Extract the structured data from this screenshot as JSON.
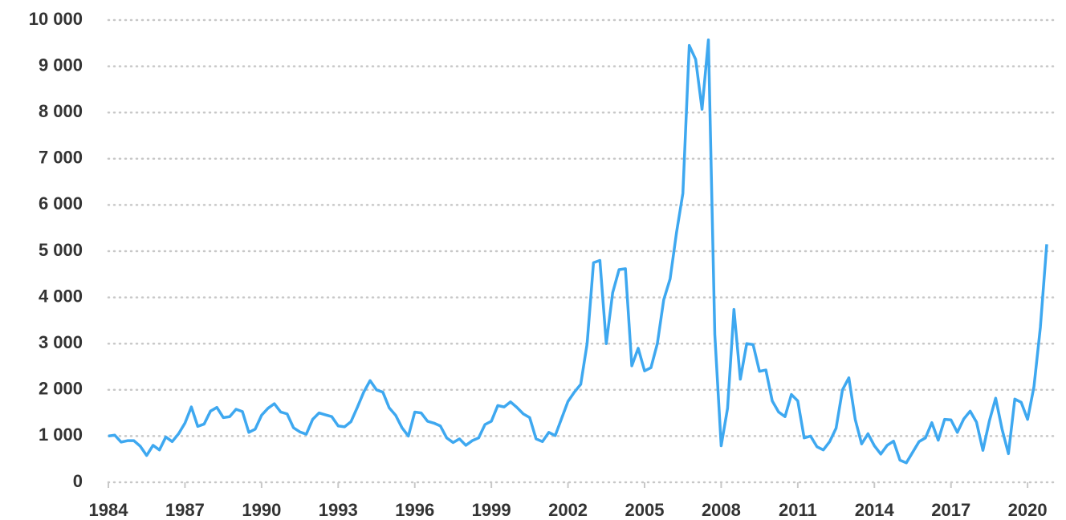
{
  "chart_data": {
    "type": "line",
    "x": [
      1984,
      1984.25,
      1984.5,
      1984.75,
      1985,
      1985.25,
      1985.5,
      1985.75,
      1986,
      1986.25,
      1986.5,
      1986.75,
      1987,
      1987.25,
      1987.5,
      1987.75,
      1988,
      1988.25,
      1988.5,
      1988.75,
      1989,
      1989.25,
      1989.5,
      1989.75,
      1990,
      1990.25,
      1990.5,
      1990.75,
      1991,
      1991.25,
      1991.5,
      1991.75,
      1992,
      1992.25,
      1992.5,
      1992.75,
      1993,
      1993.25,
      1993.5,
      1993.75,
      1994,
      1994.25,
      1994.5,
      1994.75,
      1995,
      1995.25,
      1995.5,
      1995.75,
      1996,
      1996.25,
      1996.5,
      1996.75,
      1997,
      1997.25,
      1997.5,
      1997.75,
      1998,
      1998.25,
      1998.5,
      1998.75,
      1999,
      1999.25,
      1999.5,
      1999.75,
      2000,
      2000.25,
      2000.5,
      2000.75,
      2001,
      2001.25,
      2001.5,
      2001.75,
      2002,
      2002.25,
      2002.5,
      2002.75,
      2003,
      2003.25,
      2003.5,
      2003.75,
      2004,
      2004.25,
      2004.5,
      2004.75,
      2005,
      2005.25,
      2005.5,
      2005.75,
      2006,
      2006.25,
      2006.5,
      2006.75,
      2007,
      2007.25,
      2007.5,
      2007.75,
      2008,
      2008.25,
      2008.5,
      2008.75,
      2009,
      2009.25,
      2009.5,
      2009.75,
      2010,
      2010.25,
      2010.5,
      2010.75,
      2011,
      2011.25,
      2011.5,
      2011.75,
      2012,
      2012.25,
      2012.5,
      2012.75,
      2013,
      2013.25,
      2013.5,
      2013.75,
      2014,
      2014.25,
      2014.5,
      2014.75,
      2015,
      2015.25,
      2015.5,
      2015.75,
      2016,
      2016.25,
      2016.5,
      2016.75,
      2017,
      2017.25,
      2017.5,
      2017.75,
      2018,
      2018.25,
      2018.5,
      2018.75,
      2019,
      2019.25,
      2019.5,
      2019.75,
      2020,
      2020.25,
      2020.5,
      2020.75
    ],
    "series": [
      {
        "color": "#3ea8f0",
        "values": [
          1000,
          1020,
          870,
          900,
          900,
          780,
          580,
          800,
          700,
          980,
          880,
          1050,
          1280,
          1630,
          1210,
          1260,
          1540,
          1620,
          1400,
          1420,
          1580,
          1530,
          1080,
          1150,
          1450,
          1600,
          1700,
          1520,
          1480,
          1180,
          1090,
          1040,
          1360,
          1500,
          1460,
          1420,
          1220,
          1200,
          1310,
          1620,
          1950,
          2200,
          2000,
          1950,
          1610,
          1450,
          1180,
          1000,
          1520,
          1500,
          1320,
          1280,
          1220,
          960,
          860,
          940,
          800,
          900,
          960,
          1250,
          1320,
          1660,
          1630,
          1740,
          1620,
          1480,
          1400,
          940,
          880,
          1080,
          1010,
          1380,
          1750,
          1950,
          2120,
          3000,
          4750,
          4800,
          3000,
          4100,
          4600,
          4620,
          2520,
          2900,
          2410,
          2480,
          3000,
          3950,
          4400,
          5400,
          6250,
          9450,
          9150,
          8070,
          9570,
          3200,
          790,
          1600,
          3740,
          2230,
          3000,
          2980,
          2400,
          2430,
          1760,
          1520,
          1420,
          1900,
          1760,
          960,
          1000,
          770,
          700,
          880,
          1170,
          2000,
          2260,
          1360,
          830,
          1050,
          790,
          610,
          800,
          890,
          480,
          420,
          650,
          880,
          960,
          1290,
          910,
          1360,
          1350,
          1080,
          1370,
          1540,
          1300,
          690,
          1320,
          1820,
          1150,
          620,
          1800,
          1730,
          1360,
          2070,
          3350,
          5150
        ]
      }
    ],
    "xlim": [
      1984,
      2020.75
    ],
    "xticks": [
      1984,
      1987,
      1990,
      1993,
      1996,
      1999,
      2002,
      2005,
      2008,
      2011,
      2014,
      2017,
      2020
    ],
    "ylim": [
      0,
      10000
    ],
    "yticks": [
      0,
      {
        "value": 1000,
        "label": "1 000"
      },
      {
        "value": 2000,
        "label": "2 000"
      },
      {
        "value": 3000,
        "label": "3 000"
      },
      {
        "value": 4000,
        "label": "4 000"
      },
      {
        "value": 5000,
        "label": "5 000"
      },
      {
        "value": 6000,
        "label": "6 000"
      },
      {
        "value": 7000,
        "label": "7 000"
      },
      {
        "value": 8000,
        "label": "8 000"
      },
      {
        "value": 9000,
        "label": "9 000"
      },
      {
        "value": 10000,
        "label": "10 000"
      }
    ],
    "grid": true
  }
}
